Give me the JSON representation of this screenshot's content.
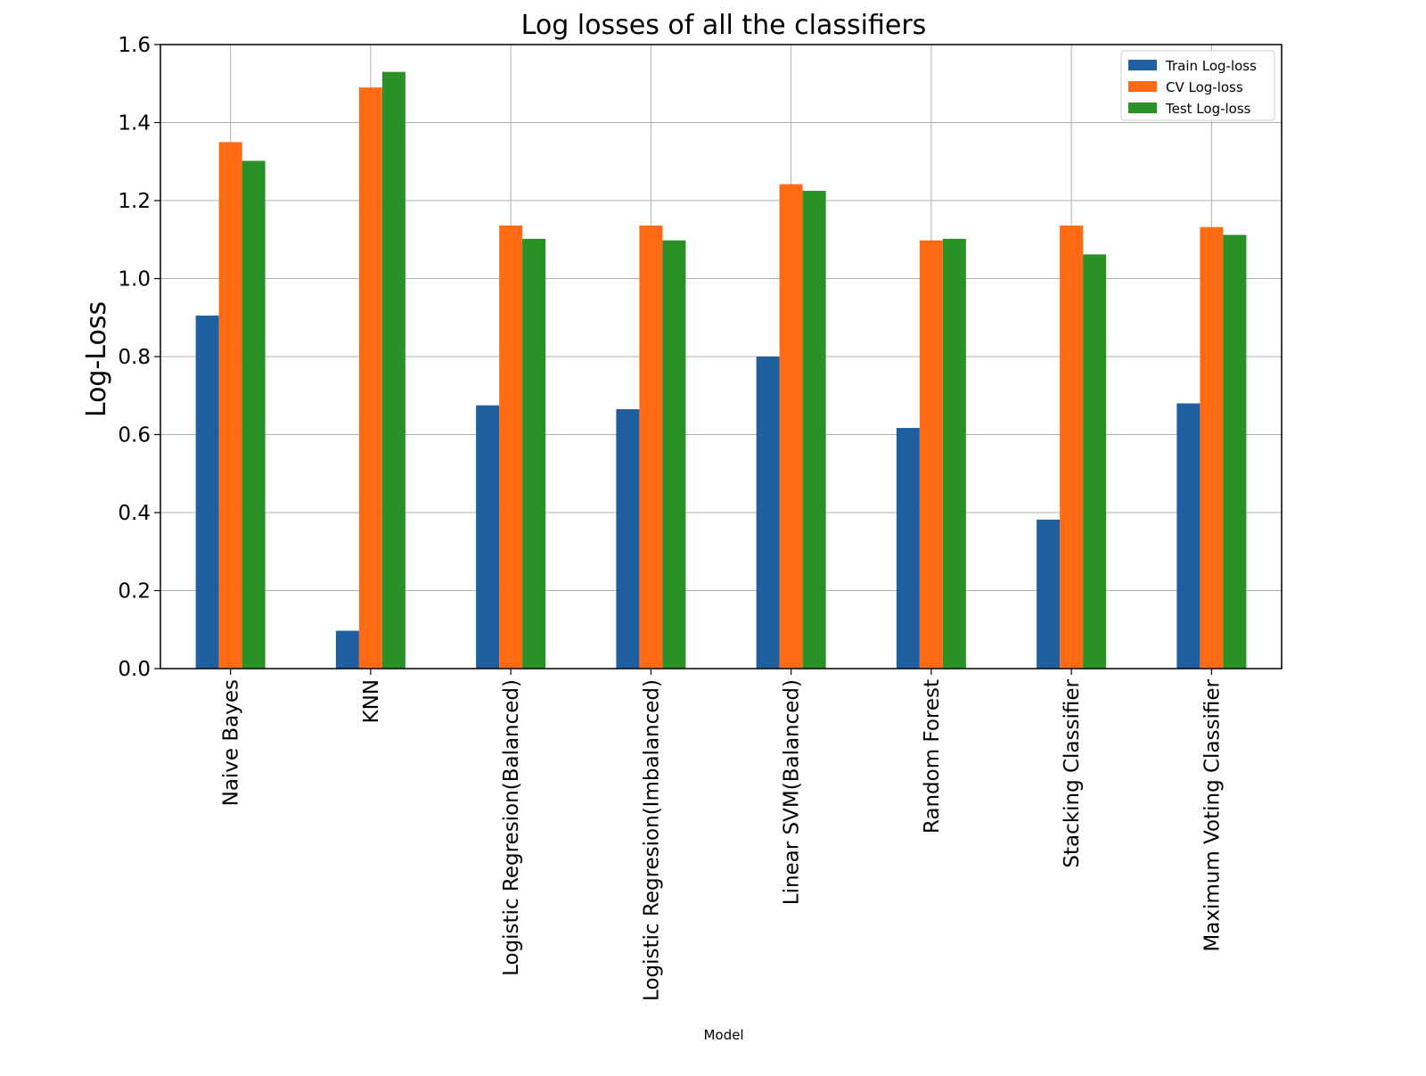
{
  "chart_data": {
    "type": "bar",
    "title": "Log losses of all the classifiers",
    "xlabel": "Model",
    "ylabel": "Log-Loss",
    "ylim": [
      0,
      1.6
    ],
    "yticks": [
      "0.0",
      "0.2",
      "0.4",
      "0.6",
      "0.8",
      "1.0",
      "1.2",
      "1.4",
      "1.6"
    ],
    "grid": true,
    "legend_position": "top-right",
    "categories": [
      "Naive Bayes",
      "KNN",
      "Logistic Regresion(Balanced)",
      "Logistic Regresion(Imbalanced)",
      "Linear SVM(Balanced)",
      "Random Forest",
      "Stacking Classifier",
      "Maximum Voting Classifier"
    ],
    "series": [
      {
        "name": "Train Log-loss",
        "color": "#1f5fa0",
        "values": [
          0.905,
          0.097,
          0.675,
          0.665,
          0.8,
          0.617,
          0.382,
          0.68
        ]
      },
      {
        "name": "CV Log-loss",
        "color": "#ff6a13",
        "values": [
          1.35,
          1.49,
          1.136,
          1.136,
          1.242,
          1.098,
          1.136,
          1.132
        ]
      },
      {
        "name": "Test Log-loss",
        "color": "#2a9127",
        "values": [
          1.302,
          1.53,
          1.102,
          1.098,
          1.225,
          1.102,
          1.062,
          1.112
        ]
      }
    ]
  }
}
